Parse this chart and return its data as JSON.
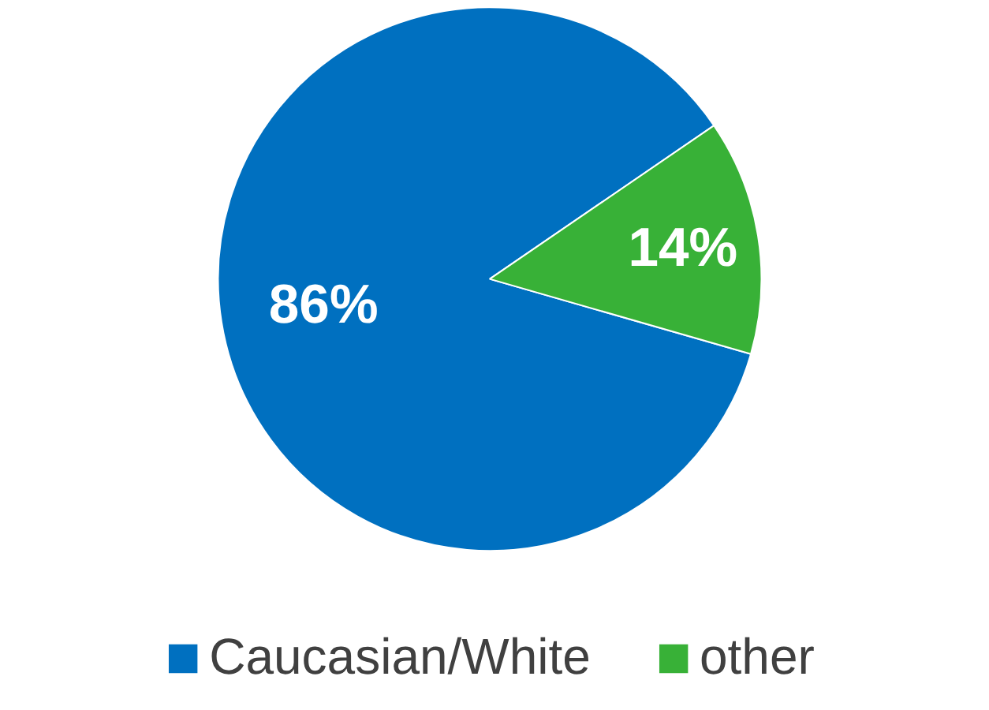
{
  "chart_data": {
    "type": "pie",
    "categories": [
      "Caucasian/White",
      "other"
    ],
    "values": [
      86,
      14
    ],
    "colors": [
      "#0070c0",
      "#38b137"
    ],
    "value_labels": [
      "86%",
      "14%"
    ],
    "legend": "bottom"
  }
}
